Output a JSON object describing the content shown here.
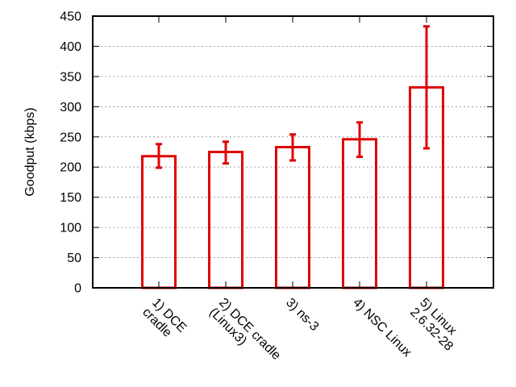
{
  "chart_data": {
    "type": "bar",
    "title": "",
    "xlabel": "",
    "ylabel": "Goodput (kbps)",
    "ylim": [
      0,
      450
    ],
    "yticks": [
      0,
      50,
      100,
      150,
      200,
      250,
      300,
      350,
      400,
      450
    ],
    "grid": true,
    "categories": [
      [
        "1) DCE",
        "cradle"
      ],
      [
        "2) DCE cradle",
        "(Linux3)"
      ],
      [
        "3) ns-3"
      ],
      [
        "4) NSC Linux"
      ],
      [
        "5) Linux",
        "2.6.32-28"
      ]
    ],
    "values": [
      218,
      225,
      233,
      246,
      332
    ],
    "error_low": [
      199,
      206,
      211,
      217,
      231
    ],
    "error_high": [
      238,
      242,
      254,
      274,
      433
    ],
    "bar_color": "#e00000"
  }
}
